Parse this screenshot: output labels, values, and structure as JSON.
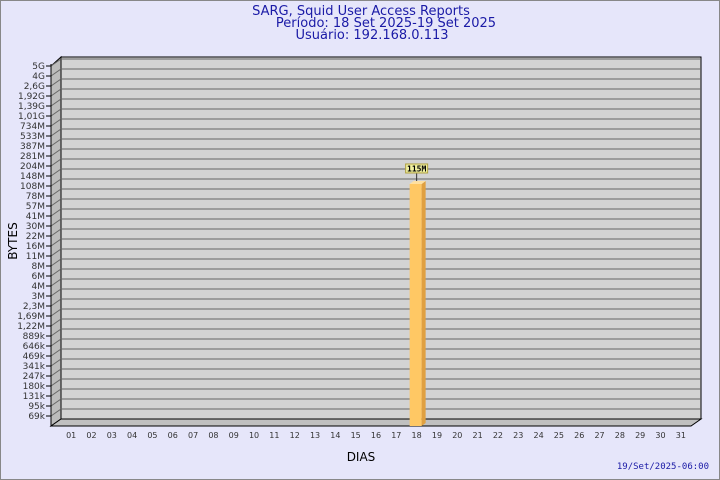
{
  "header": {
    "title": "SARG, Squid User Access Reports",
    "period": "Período: 18 Set 2025-19 Set 2025",
    "user": "Usuário: 192.168.0.113"
  },
  "footer": {
    "timestamp": "19/Set/2025-06:00"
  },
  "chart_data": {
    "type": "bar",
    "title": "SARG, Squid User Access Reports",
    "xlabel": "DIAS",
    "ylabel": "BYTES",
    "y_scale": "log",
    "y_tick_labels": [
      "5G",
      "4G",
      "2,6G",
      "1,92G",
      "1,39G",
      "1,01G",
      "734M",
      "533M",
      "387M",
      "281M",
      "204M",
      "148M",
      "108M",
      "78M",
      "57M",
      "41M",
      "30M",
      "22M",
      "16M",
      "11M",
      "8M",
      "6M",
      "4M",
      "3M",
      "2,3M",
      "1,69M",
      "1,22M",
      "889k",
      "646k",
      "469k",
      "341k",
      "247k",
      "180k",
      "131k",
      "95k",
      "69k"
    ],
    "categories": [
      "01",
      "02",
      "03",
      "04",
      "05",
      "06",
      "07",
      "08",
      "09",
      "10",
      "11",
      "12",
      "13",
      "14",
      "15",
      "16",
      "17",
      "18",
      "19",
      "20",
      "21",
      "22",
      "23",
      "24",
      "25",
      "26",
      "27",
      "28",
      "29",
      "30",
      "31"
    ],
    "values": [
      null,
      null,
      null,
      null,
      null,
      null,
      null,
      null,
      null,
      null,
      null,
      null,
      null,
      null,
      null,
      null,
      null,
      115000000,
      null,
      null,
      null,
      null,
      null,
      null,
      null,
      null,
      null,
      null,
      null,
      null,
      null
    ],
    "data_labels": {
      "18": "115M"
    },
    "grid": true,
    "colors": {
      "bar": "#ffc864",
      "bar_side": "#e0a040",
      "plot_bg": "#d3d3d3",
      "page_bg": "#e6e6fa",
      "text": "#1a1aa6"
    }
  }
}
